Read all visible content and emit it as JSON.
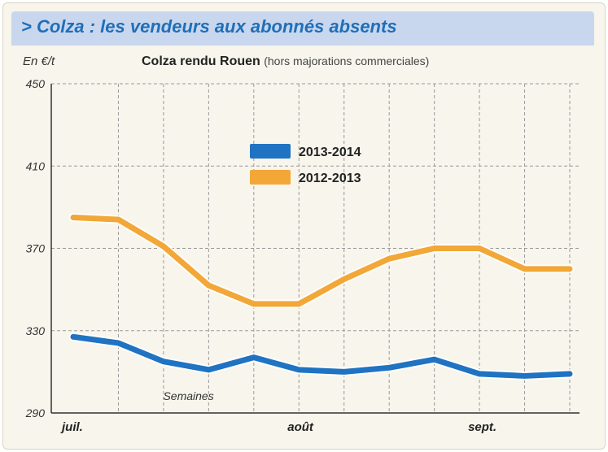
{
  "header": {
    "title": "> Colza : les vendeurs aux abonnés absents"
  },
  "chart_meta": {
    "unit": "En €/t",
    "title_main": "Colza rendu Rouen",
    "title_note": "(hors majorations commerciales)"
  },
  "colors": {
    "series_blue": "#1f73c2",
    "series_orange": "#f2a737",
    "banner_bg": "#c9d7ee",
    "banner_text": "#1f6fb8"
  },
  "chart_data": {
    "type": "line",
    "title": "Colza rendu Rouen",
    "subtitle": "(hors majorations commerciales)",
    "ylabel": "En €/t",
    "xlabel": "Semaines",
    "ylim": [
      290,
      450
    ],
    "yticks": [
      450,
      410,
      370,
      330,
      290
    ],
    "x_tick_labels": [
      {
        "label": "juil.",
        "week": 0
      },
      {
        "label": "août",
        "week": 5
      },
      {
        "label": "sept.",
        "week": 9
      }
    ],
    "grid": true,
    "legend_position": "top-center",
    "x": [
      0,
      1,
      2,
      3,
      4,
      5,
      6,
      7,
      8,
      9,
      10,
      11
    ],
    "series": [
      {
        "name": "2013-2014",
        "color": "#1f73c2",
        "values": [
          327,
          324,
          315,
          311,
          317,
          311,
          310,
          312,
          316,
          309,
          308,
          309
        ]
      },
      {
        "name": "2012-2013",
        "color": "#f2a737",
        "values": [
          385,
          384,
          371,
          352,
          343,
          343,
          355,
          365,
          370,
          370,
          360,
          360
        ]
      }
    ]
  }
}
